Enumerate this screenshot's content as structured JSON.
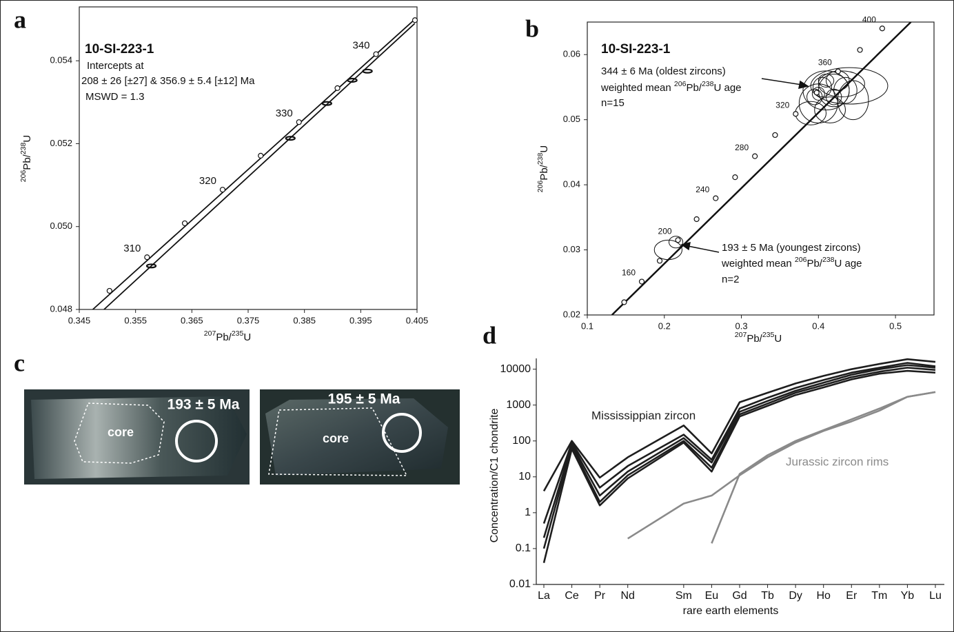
{
  "chart_data": [
    {
      "type": "concordia",
      "panel_label": "a",
      "title": "10-SI-223-1",
      "annotations": [
        "Intercepts at",
        "208 ± 26 [±27]  & 356.9 ± 5.4 [±12]  Ma",
        "MSWD = 1.3"
      ],
      "xlabel": [
        "207",
        "Pb/",
        "235",
        "U"
      ],
      "ylabel": [
        "206",
        "Pb/",
        "238",
        "U"
      ],
      "xlim": [
        0.345,
        0.405
      ],
      "ylim": [
        0.048,
        0.0553
      ],
      "xticks": [
        0.345,
        0.355,
        0.365,
        0.375,
        0.385,
        0.395,
        0.405
      ],
      "yticks": [
        0.048,
        {
          "value": 0.05,
          "label": "0.050"
        },
        0.052,
        0.054
      ],
      "lines": [
        {
          "x": [
            0.3474,
            0.4046
          ],
          "y": [
            0.048,
            0.055
          ]
        },
        {
          "x": [
            0.3494,
            0.4046
          ],
          "y": [
            0.048,
            0.0549
          ]
        }
      ],
      "concordia": {
        "x": [
          0.35037,
          0.35704,
          0.36374,
          0.37046,
          0.37723,
          0.38403,
          0.39086,
          0.39772,
          0.40463
        ],
        "y": [
          0.04845,
          0.04926,
          0.05008,
          0.05089,
          0.05171,
          0.05252,
          0.05334,
          0.05416,
          0.05498
        ],
        "age_labels": [
          null,
          310,
          null,
          320,
          null,
          330,
          null,
          340,
          null
        ]
      },
      "ellipses": {
        "x": [
          0.3578,
          0.3825,
          0.389,
          0.3935,
          0.3962
        ],
        "y": [
          0.04905,
          0.05213,
          0.05297,
          0.05353,
          0.05375
        ],
        "x_err": [
          0.0008,
          0.0008,
          0.0008,
          0.0008,
          0.0008
        ],
        "y_err": [
          4e-05,
          4e-05,
          4e-05,
          4e-05,
          4e-05
        ]
      }
    },
    {
      "type": "concordia",
      "panel_label": "b",
      "title": "10-SI-223-1",
      "annotations": [
        "344 ± 6 Ma (oldest zircons)",
        [
          "weighted mean ",
          "206",
          "Pb/",
          "238",
          "U age"
        ],
        "n=15",
        "193 ± 5 Ma (youngest zircons)",
        [
          "weighted mean ",
          "206",
          "Pb/",
          "238",
          "U age"
        ],
        " n=2"
      ],
      "xlabel": [
        "207",
        "Pb/",
        "235",
        "U"
      ],
      "ylabel": [
        "206",
        "Pb/",
        "238",
        "U"
      ],
      "xlim": [
        0.1,
        0.55
      ],
      "ylim": [
        0.02,
        0.065
      ],
      "xticks": [
        0.1,
        0.2,
        0.3,
        0.4,
        0.5
      ],
      "yticks": [
        0.02,
        0.03,
        0.04,
        0.05,
        0.06
      ],
      "lines": [
        {
          "x": [
            0.132,
            0.52
          ],
          "y": [
            0.02,
            0.065
          ]
        }
      ],
      "concordia": {
        "x": [
          0.14784,
          0.17068,
          0.19396,
          0.2177,
          0.2419,
          0.26664,
          0.29183,
          0.31753,
          0.34374,
          0.37046,
          0.39772,
          0.42551,
          0.45389,
          0.4828
        ],
        "y": [
          0.02196,
          0.02513,
          0.02832,
          0.03151,
          0.03472,
          0.03793,
          0.04116,
          0.04439,
          0.04764,
          0.05089,
          0.05416,
          0.05743,
          0.06072,
          0.06402
        ],
        "age_labels": [
          null,
          160,
          null,
          200,
          null,
          240,
          null,
          280,
          null,
          320,
          null,
          360,
          null,
          400
        ]
      },
      "ellipses": {
        "x": [
          0.205,
          0.215,
          0.41,
          0.44,
          0.43,
          0.42,
          0.4,
          0.415,
          0.39,
          0.425,
          0.405,
          0.42,
          0.435,
          0.41,
          0.395,
          0.4,
          0.445
        ],
        "y": [
          0.03,
          0.0312,
          0.0545,
          0.0552,
          0.0555,
          0.0545,
          0.0525,
          0.0515,
          0.051,
          0.056,
          0.055,
          0.0535,
          0.0545,
          0.056,
          0.0535,
          0.054,
          0.053
        ],
        "x_err": [
          0.018,
          0.009,
          0.03,
          0.05,
          0.03,
          0.02,
          0.025,
          0.02,
          0.02,
          0.015,
          0.012,
          0.01,
          0.015,
          0.01,
          0.01,
          0.008,
          0.02
        ],
        "y_err": [
          0.0015,
          0.0009,
          0.003,
          0.0028,
          0.002,
          0.0025,
          0.003,
          0.002,
          0.0018,
          0.0015,
          0.0015,
          0.0012,
          0.002,
          0.001,
          0.0012,
          0.001,
          0.003
        ]
      }
    },
    {
      "type": "line",
      "panel_label": "d",
      "log_y": true,
      "categories": [
        "La",
        "Ce",
        "Pr",
        "Nd",
        "Sm",
        "Eu",
        "Gd",
        "Tb",
        "Dy",
        "Ho",
        "Er",
        "Tm",
        "Yb",
        "Lu"
      ],
      "xlabel": "rare earth elements",
      "ylabel": "Concentration/C1 chondrite",
      "ylim": [
        0.01,
        20000
      ],
      "yticks": [
        0.01,
        0.1,
        1,
        10,
        100,
        1000,
        10000
      ],
      "series": [
        {
          "name": "Mississippian zircon",
          "color": "#1e1e1e",
          "lines": [
            [
              4,
              100,
              9.5,
              35,
              270,
              45,
              1200,
              2200,
              4000,
              6500,
              10000,
              14000,
              19000,
              16000
            ],
            [
              0.5,
              90,
              5,
              20,
              150,
              30,
              800,
              1600,
              3000,
              5000,
              8000,
              11000,
              15000,
              12000
            ],
            [
              0.2,
              80,
              3,
              14,
              120,
              25,
              650,
              1300,
              2500,
              4200,
              7000,
              10000,
              13000,
              11000
            ],
            [
              0.1,
              70,
              2,
              11,
              100,
              18,
              550,
              1100,
              2200,
              3600,
              6000,
              8500,
              11000,
              9500
            ],
            [
              0.04,
              60,
              1.6,
              9,
              90,
              14,
              480,
              950,
              1900,
              3100,
              5200,
              7500,
              9000,
              8000
            ]
          ]
        },
        {
          "name": "Jurassic zircon rims",
          "color": "#8a8a8a",
          "lines": [
            [
              null,
              null,
              null,
              0.19,
              1.8,
              3,
              11,
              35,
              90,
              190,
              350,
              700,
              1700,
              2300
            ],
            [
              null,
              null,
              null,
              null,
              null,
              0.14,
              12,
              40,
              100,
              200,
              400,
              800,
              1700,
              2300
            ]
          ]
        }
      ]
    }
  ],
  "image_panel": {
    "panel_label": "c",
    "images": [
      {
        "age": "193 ± 5 Ma",
        "zone": "core"
      },
      {
        "age": "195 ± 5 Ma",
        "zone": "core"
      }
    ]
  }
}
